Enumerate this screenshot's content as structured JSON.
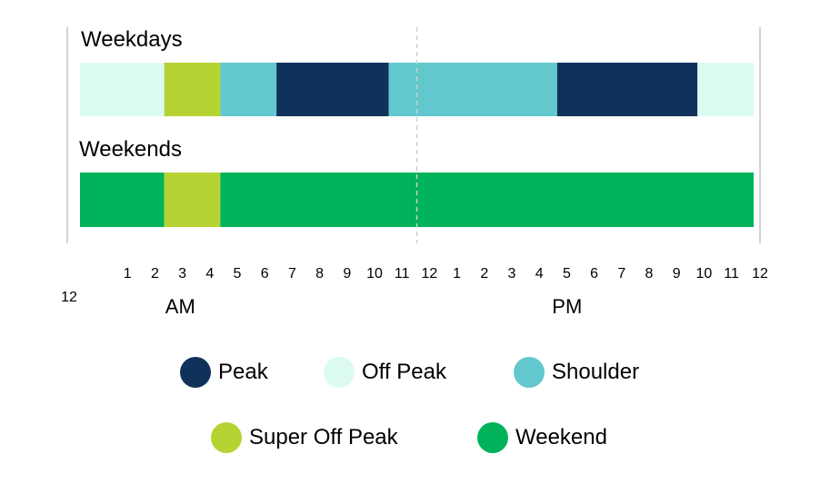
{
  "chart_data": {
    "type": "bar",
    "orientation": "horizontal-timeline",
    "x_unit": "hour of day",
    "xlim": [
      0,
      24
    ],
    "rows": [
      {
        "label": "Weekdays",
        "segments": [
          {
            "start": 0,
            "end": 3,
            "category": "Off Peak"
          },
          {
            "start": 3,
            "end": 5,
            "category": "Super Off Peak"
          },
          {
            "start": 5,
            "end": 7,
            "category": "Shoulder"
          },
          {
            "start": 7,
            "end": 11,
            "category": "Peak"
          },
          {
            "start": 11,
            "end": 17,
            "category": "Shoulder"
          },
          {
            "start": 17,
            "end": 22,
            "category": "Peak"
          },
          {
            "start": 22,
            "end": 24,
            "category": "Off Peak"
          }
        ]
      },
      {
        "label": "Weekends",
        "segments": [
          {
            "start": 0,
            "end": 3,
            "category": "Weekend"
          },
          {
            "start": 3,
            "end": 5,
            "category": "Super Off Peak"
          },
          {
            "start": 5,
            "end": 24,
            "category": "Weekend"
          }
        ]
      }
    ],
    "tick_labels": [
      "12",
      "1",
      "2",
      "3",
      "4",
      "5",
      "6",
      "7",
      "8",
      "9",
      "10",
      "11",
      "12",
      "1",
      "2",
      "3",
      "4",
      "5",
      "6",
      "7",
      "8",
      "9",
      "10",
      "11",
      "12"
    ],
    "period_labels": [
      {
        "label": "AM",
        "center": 6
      },
      {
        "label": "PM",
        "center": 18
      }
    ],
    "legend": [
      {
        "label": "Peak",
        "color": "#10325a"
      },
      {
        "label": "Off Peak",
        "color": "#dbfbf2"
      },
      {
        "label": "Shoulder",
        "color": "#62c8cd"
      },
      {
        "label": "Super Off Peak",
        "color": "#b6d334"
      },
      {
        "label": "Weekend",
        "color": "#00b259"
      }
    ],
    "colors": {
      "Peak": "#10325a",
      "Off Peak": "#dbfbf2",
      "Shoulder": "#62c8cd",
      "Super Off Peak": "#b6d334",
      "Weekend": "#00b259"
    },
    "midday_divider": true,
    "legend_placement": "bottom"
  }
}
